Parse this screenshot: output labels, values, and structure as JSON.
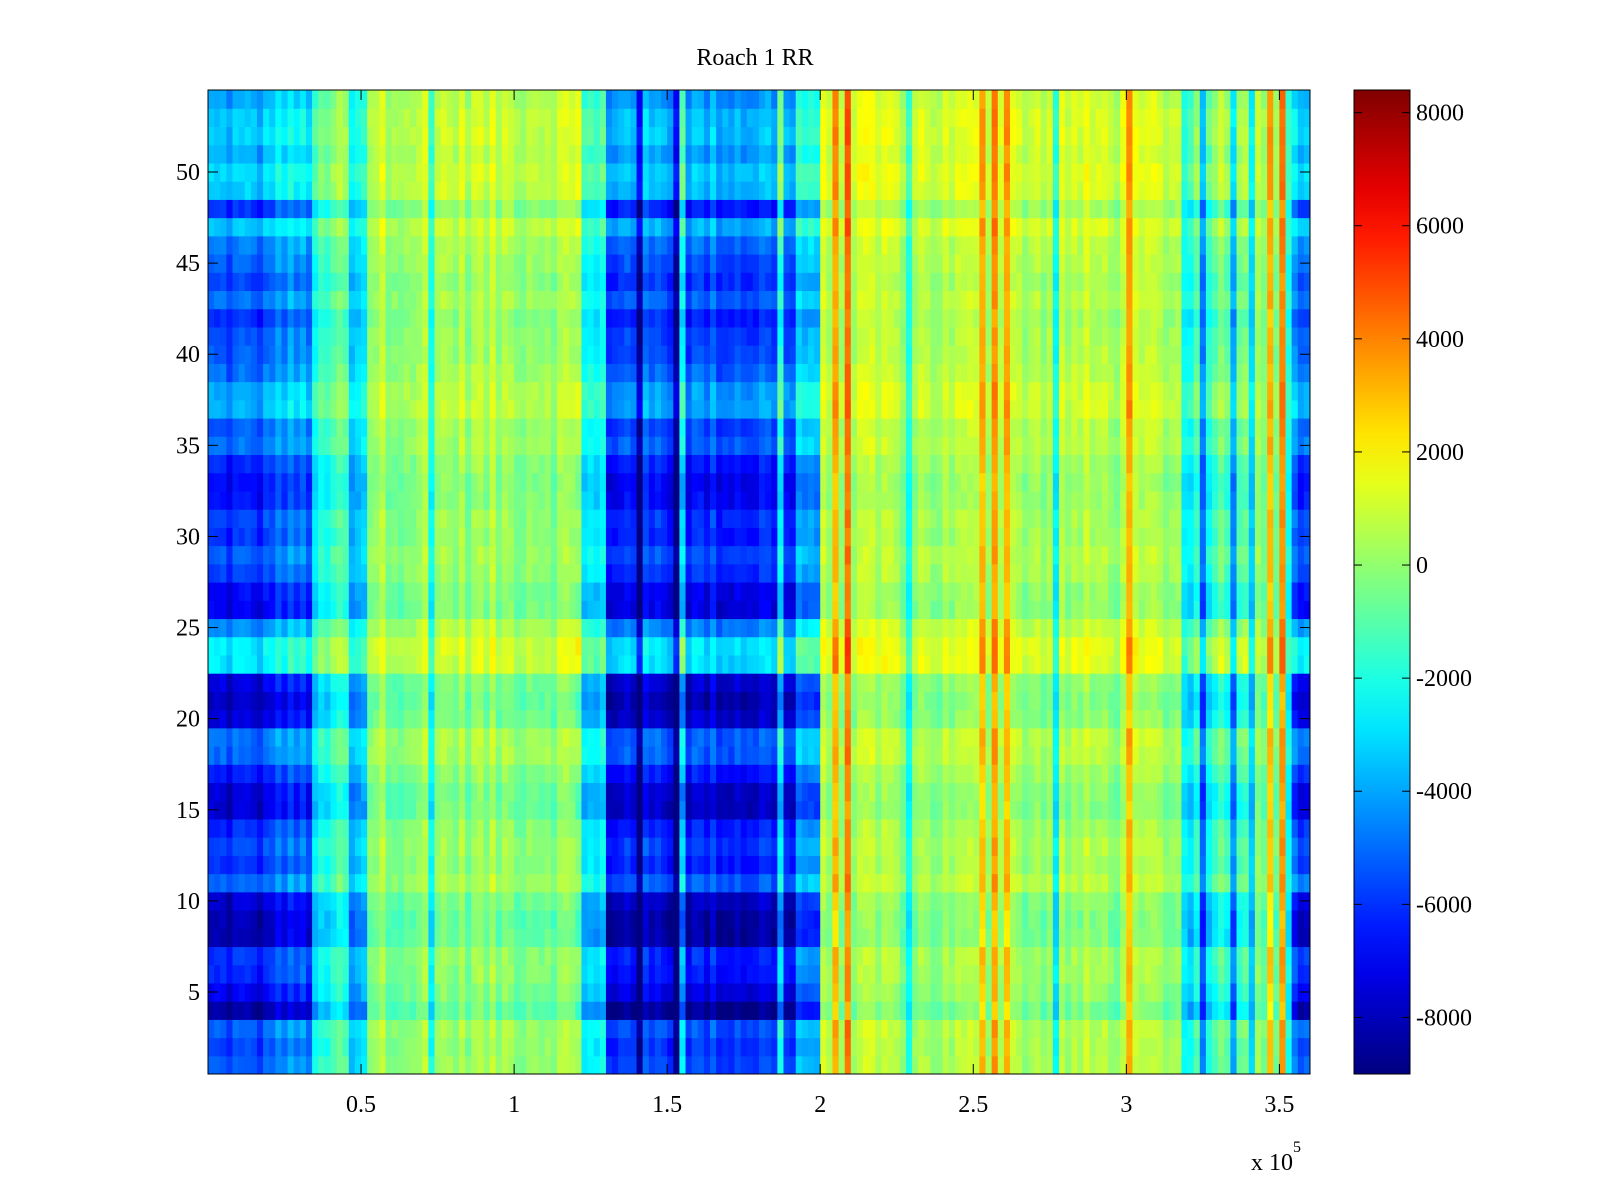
{
  "chart_data": {
    "type": "heatmap",
    "title": "Roach 1 RR",
    "xlabel": "",
    "ylabel": "",
    "x_exponent_label": "x 10",
    "x_exponent_power": "5",
    "xlim": [
      0,
      360000
    ],
    "ylim": [
      0.5,
      54.5
    ],
    "x_ticks": [
      {
        "value": 50000,
        "label": "0.5"
      },
      {
        "value": 100000,
        "label": "1"
      },
      {
        "value": 150000,
        "label": "1.5"
      },
      {
        "value": 200000,
        "label": "2"
      },
      {
        "value": 250000,
        "label": "2.5"
      },
      {
        "value": 300000,
        "label": "3"
      },
      {
        "value": 350000,
        "label": "3.5"
      }
    ],
    "y_ticks": [
      {
        "value": 5,
        "label": "5"
      },
      {
        "value": 10,
        "label": "10"
      },
      {
        "value": 15,
        "label": "15"
      },
      {
        "value": 20,
        "label": "20"
      },
      {
        "value": 25,
        "label": "25"
      },
      {
        "value": 30,
        "label": "30"
      },
      {
        "value": 35,
        "label": "35"
      },
      {
        "value": 40,
        "label": "40"
      },
      {
        "value": 45,
        "label": "45"
      },
      {
        "value": 50,
        "label": "50"
      }
    ],
    "rows": 54,
    "colormap": "jet",
    "colorbar": {
      "range": [
        -9000,
        8400
      ],
      "ticks": [
        {
          "value": 8000,
          "label": "8000"
        },
        {
          "value": 6000,
          "label": "6000"
        },
        {
          "value": 4000,
          "label": "4000"
        },
        {
          "value": 2000,
          "label": "2000"
        },
        {
          "value": 0,
          "label": "0"
        },
        {
          "value": -2000,
          "label": "-2000"
        },
        {
          "value": -4000,
          "label": "-4000"
        },
        {
          "value": -6000,
          "label": "-6000"
        },
        {
          "value": -8000,
          "label": "-8000"
        }
      ]
    },
    "column_segments": [
      {
        "x0": 0,
        "x1": 21000,
        "base": -5500
      },
      {
        "x0": 21000,
        "x1": 34000,
        "base": -4500
      },
      {
        "x0": 34000,
        "x1": 40000,
        "base": -2200
      },
      {
        "x0": 40000,
        "x1": 48000,
        "base": -1000
      },
      {
        "x0": 48000,
        "x1": 52000,
        "base": -2600
      },
      {
        "x0": 52000,
        "x1": 120000,
        "base": 300
      },
      {
        "x0": 120000,
        "x1": 131000,
        "base": -2600
      },
      {
        "x0": 131000,
        "x1": 193000,
        "base": -5600
      },
      {
        "x0": 193000,
        "x1": 200000,
        "base": -3400
      },
      {
        "x0": 200000,
        "x1": 320000,
        "base": 500
      },
      {
        "x0": 320000,
        "x1": 330000,
        "base": -1800
      },
      {
        "x0": 330000,
        "x1": 340000,
        "base": -600
      },
      {
        "x0": 340000,
        "x1": 354000,
        "base": 200
      },
      {
        "x0": 354000,
        "x1": 360000,
        "base": -4600
      }
    ],
    "row_offsets": [
      0,
      -300,
      100,
      -2200,
      -1200,
      -600,
      -500,
      -2000,
      -2000,
      -1600,
      200,
      -500,
      -200,
      -600,
      -1600,
      -1500,
      -700,
      200,
      300,
      -1500,
      -1800,
      -1400,
      1800,
      1900,
      700,
      -1200,
      -1100,
      -300,
      0,
      -500,
      -300,
      -900,
      -1000,
      -600,
      300,
      0,
      1100,
      1000,
      300,
      0,
      -100,
      -500,
      300,
      -300,
      100,
      400,
      1300,
      -500,
      1400,
      1600,
      1000,
      1500,
      1400,
      1000
    ]
  }
}
